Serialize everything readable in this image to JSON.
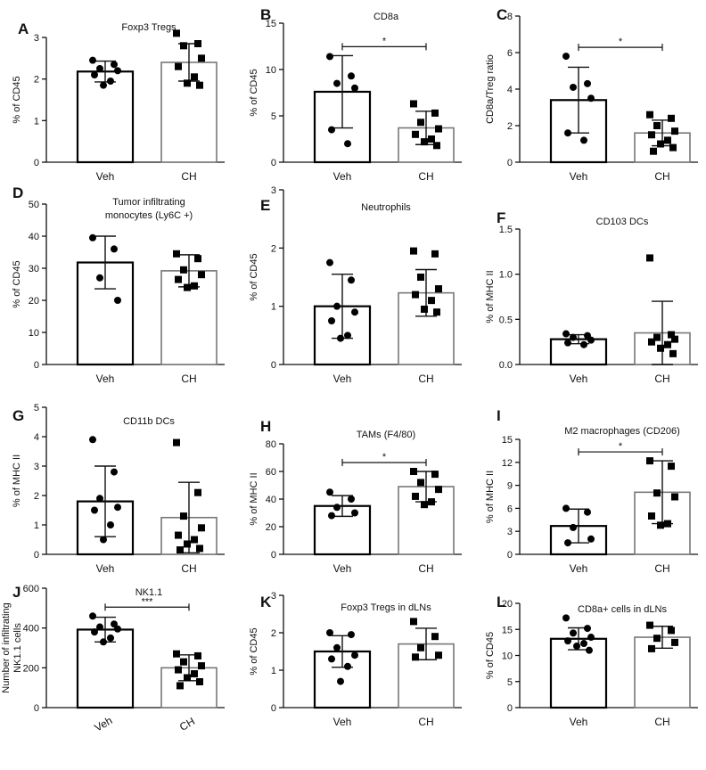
{
  "chart_data": [
    {
      "id": "A",
      "type": "bar",
      "title": "Foxp3 Tregs",
      "ylabel": "% of CD45",
      "ylim": [
        0,
        3
      ],
      "yticks": [
        0,
        1,
        2,
        3
      ],
      "categories": [
        "Veh",
        "CH"
      ],
      "series": [
        {
          "name": "Veh",
          "mean": 2.18,
          "sd": 0.25,
          "points": [
            2.45,
            2.35,
            2.25,
            2.2,
            2.1,
            1.95,
            1.85
          ]
        },
        {
          "name": "CH",
          "mean": 2.4,
          "sd": 0.45,
          "points": [
            3.1,
            2.85,
            2.8,
            2.5,
            2.3,
            2.05,
            1.9,
            1.85
          ]
        }
      ],
      "significance": ""
    },
    {
      "id": "B",
      "type": "bar",
      "title": "CD8a",
      "ylabel": "% of CD45",
      "ylim": [
        0,
        15
      ],
      "yticks": [
        0,
        5,
        10,
        15
      ],
      "categories": [
        "Veh",
        "CH"
      ],
      "series": [
        {
          "name": "Veh",
          "mean": 7.6,
          "sd": 3.9,
          "points": [
            11.4,
            9.3,
            8.5,
            8.0,
            3.5,
            2.0
          ]
        },
        {
          "name": "CH",
          "mean": 3.7,
          "sd": 1.8,
          "points": [
            6.3,
            5.3,
            4.3,
            3.6,
            3.0,
            2.5,
            2.2,
            1.8
          ]
        }
      ],
      "significance": "*"
    },
    {
      "id": "C",
      "type": "bar",
      "title": "",
      "ylabel": "CD8a/Treg ratio",
      "ylim": [
        0,
        8
      ],
      "yticks": [
        0,
        2,
        4,
        6,
        8
      ],
      "categories": [
        "Veh",
        "CH"
      ],
      "series": [
        {
          "name": "Veh",
          "mean": 3.4,
          "sd": 1.8,
          "points": [
            5.8,
            4.3,
            4.1,
            3.5,
            1.6,
            1.2
          ]
        },
        {
          "name": "CH",
          "mean": 1.6,
          "sd": 0.7,
          "points": [
            2.6,
            2.4,
            2.0,
            1.7,
            1.5,
            1.2,
            1.0,
            0.8,
            0.6
          ]
        }
      ],
      "significance": "*"
    },
    {
      "id": "D",
      "type": "bar",
      "title": "Tumor infiltrating monocytes (Ly6C +)",
      "title_lines": [
        "Tumor infiltrating",
        "monocytes (Ly6C +)"
      ],
      "ylabel": "% of CD45",
      "ylim": [
        0,
        50
      ],
      "yticks": [
        0,
        10,
        20,
        30,
        40,
        50
      ],
      "categories": [
        "Veh",
        "CH"
      ],
      "series": [
        {
          "name": "Veh",
          "mean": 31.8,
          "sd": 8.2,
          "points": [
            39.5,
            36,
            27,
            20
          ]
        },
        {
          "name": "CH",
          "mean": 29.2,
          "sd": 5,
          "points": [
            34.5,
            33,
            29.5,
            28,
            26.5,
            24.5,
            24
          ]
        }
      ],
      "significance": ""
    },
    {
      "id": "E",
      "type": "bar",
      "title": "Neutrophils",
      "ylabel": "% of CD45",
      "ylim": [
        0,
        3
      ],
      "yticks": [
        0,
        1,
        2,
        3
      ],
      "categories": [
        "Veh",
        "CH"
      ],
      "series": [
        {
          "name": "Veh",
          "mean": 1.0,
          "sd": 0.55,
          "points": [
            1.75,
            1.45,
            1.0,
            0.9,
            0.75,
            0.5,
            0.45
          ]
        },
        {
          "name": "CH",
          "mean": 1.23,
          "sd": 0.4,
          "points": [
            1.95,
            1.9,
            1.5,
            1.3,
            1.2,
            1.1,
            0.95,
            0.9
          ]
        }
      ],
      "significance": ""
    },
    {
      "id": "F",
      "type": "bar",
      "title": "CD103 DCs",
      "ylabel": "% of MHC II",
      "ylim": [
        0,
        1.5
      ],
      "yticks": [
        "0.0",
        "0.5",
        "1.0",
        "1.5"
      ],
      "categories": [
        "Veh",
        "CH"
      ],
      "series": [
        {
          "name": "Veh",
          "mean": 0.28,
          "sd": 0.05,
          "points": [
            0.34,
            0.32,
            0.3,
            0.27,
            0.24,
            0.22
          ]
        },
        {
          "name": "CH",
          "mean": 0.35,
          "sd": 0.35,
          "points": [
            1.18,
            0.33,
            0.3,
            0.28,
            0.25,
            0.22,
            0.18,
            0.12
          ]
        }
      ],
      "significance": ""
    },
    {
      "id": "G",
      "type": "bar",
      "title": "CD11b DCs",
      "ylabel": "% of MHC II",
      "ylim": [
        0,
        5
      ],
      "yticks": [
        0,
        1,
        2,
        3,
        4,
        5
      ],
      "categories": [
        "Veh",
        "CH"
      ],
      "series": [
        {
          "name": "Veh",
          "mean": 1.8,
          "sd": 1.2,
          "points": [
            3.9,
            2.8,
            1.9,
            1.6,
            1.5,
            1.0,
            0.5
          ]
        },
        {
          "name": "CH",
          "mean": 1.25,
          "sd": 1.2,
          "points": [
            3.8,
            2.1,
            1.3,
            0.9,
            0.65,
            0.5,
            0.35,
            0.2,
            0.15
          ]
        }
      ],
      "significance": ""
    },
    {
      "id": "H",
      "type": "bar",
      "title": "TAMs (F4/80)",
      "ylabel": "% of MHC II",
      "ylim": [
        0,
        80
      ],
      "yticks": [
        0,
        20,
        40,
        60,
        80
      ],
      "categories": [
        "Veh",
        "CH"
      ],
      "series": [
        {
          "name": "Veh",
          "mean": 35,
          "sd": 7.5,
          "points": [
            45,
            40,
            34,
            30,
            28
          ]
        },
        {
          "name": "CH",
          "mean": 49,
          "sd": 11,
          "points": [
            60,
            58,
            52,
            47,
            42,
            38,
            36
          ]
        }
      ],
      "significance": "*"
    },
    {
      "id": "I",
      "type": "bar",
      "title": "M2 macrophages (CD206)",
      "ylabel": "% of MHC II",
      "ylim": [
        0,
        15
      ],
      "yticks": [
        0,
        3,
        6,
        9,
        12,
        15
      ],
      "categories": [
        "Veh",
        "CH"
      ],
      "series": [
        {
          "name": "Veh",
          "mean": 3.7,
          "sd": 2.2,
          "points": [
            6,
            5.5,
            3.5,
            2,
            1.5
          ]
        },
        {
          "name": "CH",
          "mean": 8.1,
          "sd": 4.1,
          "points": [
            12.2,
            11.5,
            8,
            7.5,
            5,
            4,
            3.8
          ]
        }
      ],
      "significance": "*"
    },
    {
      "id": "J",
      "type": "bar",
      "title": "NK1.1",
      "ylabel": "Number of infiltrating NK1.1 cells",
      "ylabel_lines": [
        "Number of infiltrating",
        "NK1.1 cells"
      ],
      "ylim": [
        0,
        600
      ],
      "yticks": [
        0,
        200,
        400,
        600
      ],
      "categories": [
        "Veh",
        "CH"
      ],
      "series": [
        {
          "name": "Veh",
          "mean": 392,
          "sd": 62,
          "points": [
            460,
            420,
            405,
            395,
            380,
            350,
            330
          ]
        },
        {
          "name": "CH",
          "mean": 200,
          "sd": 65,
          "points": [
            270,
            260,
            230,
            210,
            190,
            170,
            150,
            130,
            110
          ]
        }
      ],
      "significance": "***"
    },
    {
      "id": "K",
      "type": "bar",
      "title": "Foxp3 Tregs in dLNs",
      "ylabel": "% of CD45",
      "ylim": [
        0,
        3
      ],
      "yticks": [
        0,
        1,
        2,
        3
      ],
      "categories": [
        "Veh",
        "CH"
      ],
      "series": [
        {
          "name": "Veh",
          "mean": 1.5,
          "sd": 0.42,
          "points": [
            2.0,
            1.95,
            1.6,
            1.4,
            1.3,
            1.1,
            0.7
          ]
        },
        {
          "name": "CH",
          "mean": 1.7,
          "sd": 0.42,
          "points": [
            2.3,
            1.9,
            1.6,
            1.4,
            1.35
          ]
        }
      ],
      "significance": ""
    },
    {
      "id": "L",
      "type": "bar",
      "title": "CD8a+ cells in dLNs",
      "ylabel": "% of CD45",
      "ylim": [
        0,
        20
      ],
      "yticks": [
        0,
        5,
        10,
        15,
        20
      ],
      "categories": [
        "Veh",
        "CH"
      ],
      "series": [
        {
          "name": "Veh",
          "mean": 13.2,
          "sd": 2.1,
          "points": [
            17.2,
            15.2,
            14.3,
            13.5,
            12.8,
            12.3,
            11.8,
            11.0
          ]
        },
        {
          "name": "CH",
          "mean": 13.5,
          "sd": 2.1,
          "points": [
            15.8,
            14.8,
            13.3,
            12.5,
            11.3
          ]
        }
      ],
      "significance": ""
    }
  ]
}
